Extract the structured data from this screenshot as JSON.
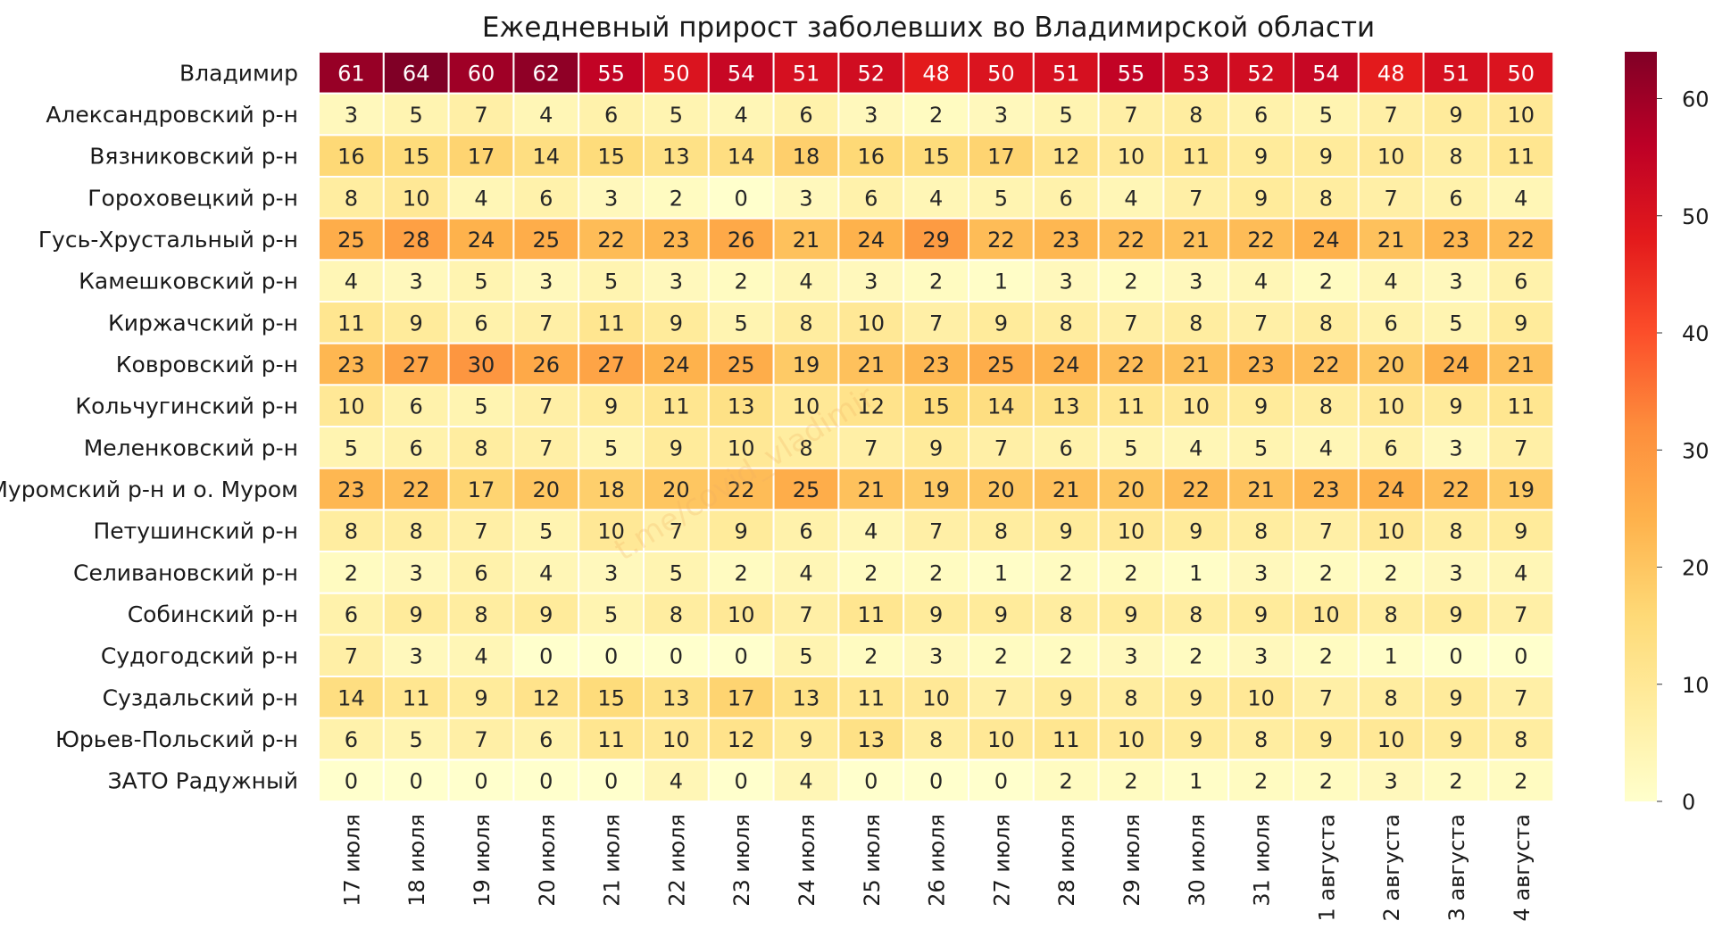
{
  "chart_data": {
    "type": "heatmap",
    "title": "Ежедневный прирост заболевших во Владимирской области",
    "watermark": "t.me/covid_vladimir",
    "rows": [
      "Владимир",
      "Александровский р-н",
      "Вязниковский р-н",
      "Гороховецкий р-н",
      "Гусь-Хрустальный р-н",
      "Камешковский р-н",
      "Киржачский р-н",
      "Ковровский р-н",
      "Кольчугинский р-н",
      "Меленковский р-н",
      "Муромский р-н и о. Муром",
      "Петушинский р-н",
      "Селивановский р-н",
      "Собинский р-н",
      "Судогодский р-н",
      "Суздальский р-н",
      "Юрьев-Польский р-н",
      "ЗАТО Радужный"
    ],
    "columns": [
      "17 июля",
      "18 июля",
      "19 июля",
      "20 июля",
      "21 июля",
      "22 июля",
      "23 июля",
      "24 июля",
      "25 июля",
      "26 июля",
      "27 июля",
      "28 июля",
      "29 июля",
      "30 июля",
      "31 июля",
      "1 августа",
      "2 августа",
      "3 августа",
      "4 августа"
    ],
    "values": [
      [
        61,
        64,
        60,
        62,
        55,
        50,
        54,
        51,
        52,
        48,
        50,
        51,
        55,
        53,
        52,
        54,
        48,
        51,
        50
      ],
      [
        3,
        5,
        7,
        4,
        6,
        5,
        4,
        6,
        3,
        2,
        3,
        5,
        7,
        8,
        6,
        5,
        7,
        9,
        10
      ],
      [
        16,
        15,
        17,
        14,
        15,
        13,
        14,
        18,
        16,
        15,
        17,
        12,
        10,
        11,
        9,
        9,
        10,
        8,
        11
      ],
      [
        8,
        10,
        4,
        6,
        3,
        2,
        0,
        3,
        6,
        4,
        5,
        6,
        4,
        7,
        9,
        8,
        7,
        6,
        4
      ],
      [
        25,
        28,
        24,
        25,
        22,
        23,
        26,
        21,
        24,
        29,
        22,
        23,
        22,
        21,
        22,
        24,
        21,
        23,
        22
      ],
      [
        4,
        3,
        5,
        3,
        5,
        3,
        2,
        4,
        3,
        2,
        1,
        3,
        2,
        3,
        4,
        2,
        4,
        3,
        6
      ],
      [
        11,
        9,
        6,
        7,
        11,
        9,
        5,
        8,
        10,
        7,
        9,
        8,
        7,
        8,
        7,
        8,
        6,
        5,
        9
      ],
      [
        23,
        27,
        30,
        26,
        27,
        24,
        25,
        19,
        21,
        23,
        25,
        24,
        22,
        21,
        23,
        22,
        20,
        24,
        21
      ],
      [
        10,
        6,
        5,
        7,
        9,
        11,
        13,
        10,
        12,
        15,
        14,
        13,
        11,
        10,
        9,
        8,
        10,
        9,
        11
      ],
      [
        5,
        6,
        8,
        7,
        5,
        9,
        10,
        8,
        7,
        9,
        7,
        6,
        5,
        4,
        5,
        4,
        6,
        3,
        7
      ],
      [
        23,
        22,
        17,
        20,
        18,
        20,
        22,
        25,
        21,
        19,
        20,
        21,
        20,
        22,
        21,
        23,
        24,
        22,
        19
      ],
      [
        8,
        8,
        7,
        5,
        10,
        7,
        9,
        6,
        4,
        7,
        8,
        9,
        10,
        9,
        8,
        7,
        10,
        8,
        9
      ],
      [
        2,
        3,
        6,
        4,
        3,
        5,
        2,
        4,
        2,
        2,
        1,
        2,
        2,
        1,
        3,
        2,
        2,
        3,
        4
      ],
      [
        6,
        9,
        8,
        9,
        5,
        8,
        10,
        7,
        11,
        9,
        9,
        8,
        9,
        8,
        9,
        10,
        8,
        9,
        7
      ],
      [
        7,
        3,
        4,
        0,
        0,
        0,
        0,
        5,
        2,
        3,
        2,
        2,
        3,
        2,
        3,
        2,
        1,
        0,
        0
      ],
      [
        14,
        11,
        9,
        12,
        15,
        13,
        17,
        13,
        11,
        10,
        7,
        9,
        8,
        9,
        10,
        7,
        8,
        9,
        7
      ],
      [
        6,
        5,
        7,
        6,
        11,
        10,
        12,
        9,
        13,
        8,
        10,
        11,
        10,
        9,
        8,
        9,
        10,
        9,
        8
      ],
      [
        0,
        0,
        0,
        0,
        0,
        4,
        0,
        4,
        0,
        0,
        0,
        2,
        2,
        1,
        2,
        2,
        3,
        2,
        2
      ]
    ],
    "vmin": 0,
    "vmax": 64,
    "colormap": "YlOrRd",
    "colorbar_ticks": [
      0,
      10,
      20,
      30,
      40,
      50,
      60
    ],
    "grid_color": "#ffffff"
  }
}
